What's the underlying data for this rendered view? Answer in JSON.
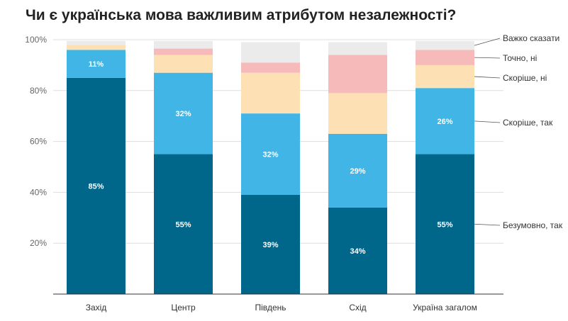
{
  "chart_data": {
    "type": "bar",
    "stacked": true,
    "title": "Чи є українська мова важливим атрибутом незалежності?",
    "categories": [
      "Захід",
      "Центр",
      "Південь",
      "Схід",
      "Україна загалом"
    ],
    "ylim": [
      0,
      100
    ],
    "yticks": [
      {
        "value": 20,
        "label": "20%"
      },
      {
        "value": 40,
        "label": "40%"
      },
      {
        "value": 60,
        "label": "60%"
      },
      {
        "value": 80,
        "label": "80%"
      },
      {
        "value": 100,
        "label": "100%"
      }
    ],
    "grid": true,
    "legend": "right, labels beside last bar",
    "series": [
      {
        "name": "Безумовно, так",
        "color": "#00668a",
        "values": [
          85,
          55,
          39,
          34,
          55
        ],
        "labels": [
          "85%",
          "55%",
          "39%",
          "34%",
          "55%"
        ]
      },
      {
        "name": "Скоріше, так",
        "color": "#41b6e6",
        "values": [
          11,
          32,
          32,
          29,
          26
        ],
        "labels": [
          "11%",
          "32%",
          "32%",
          "29%",
          "26%"
        ]
      },
      {
        "name": "Скоріше, ні",
        "color": "#fde1b5",
        "values": [
          2,
          7,
          16,
          16,
          9
        ],
        "labels": [
          "",
          "",
          "",
          "",
          ""
        ]
      },
      {
        "name": "Точно, ні",
        "color": "#f7baba",
        "values": [
          0,
          2.5,
          4,
          15,
          6
        ],
        "labels": [
          "",
          "",
          "",
          "",
          ""
        ]
      },
      {
        "name": "Важко сказати",
        "color": "#ebebeb",
        "values": [
          1.5,
          3,
          8,
          5,
          3.5
        ],
        "labels": [
          "",
          "",
          "",
          "",
          ""
        ]
      }
    ]
  }
}
